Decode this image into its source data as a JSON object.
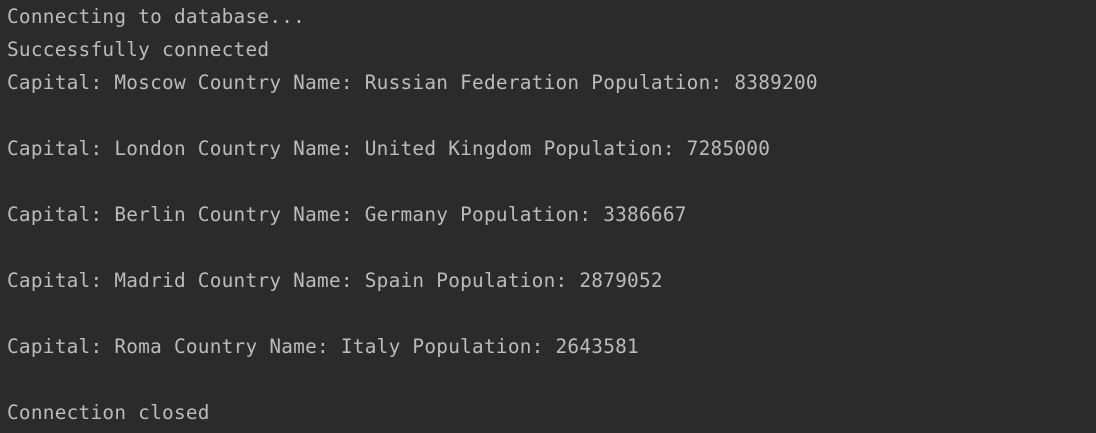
{
  "console": {
    "lines": [
      "Connecting to database...",
      "Successfully connected",
      "Capital: Moscow Country Name: Russian Federation Population: 8389200",
      "",
      "Capital: London Country Name: United Kingdom Population: 7285000",
      "",
      "Capital: Berlin Country Name: Germany Population: 3386667",
      "",
      "Capital: Madrid Country Name: Spain Population: 2879052",
      "",
      "Capital: Roma Country Name: Italy Population: 2643581",
      "",
      "Connection closed"
    ]
  },
  "colors": {
    "background": "#2b2b2b",
    "text": "#bbbbbb"
  }
}
